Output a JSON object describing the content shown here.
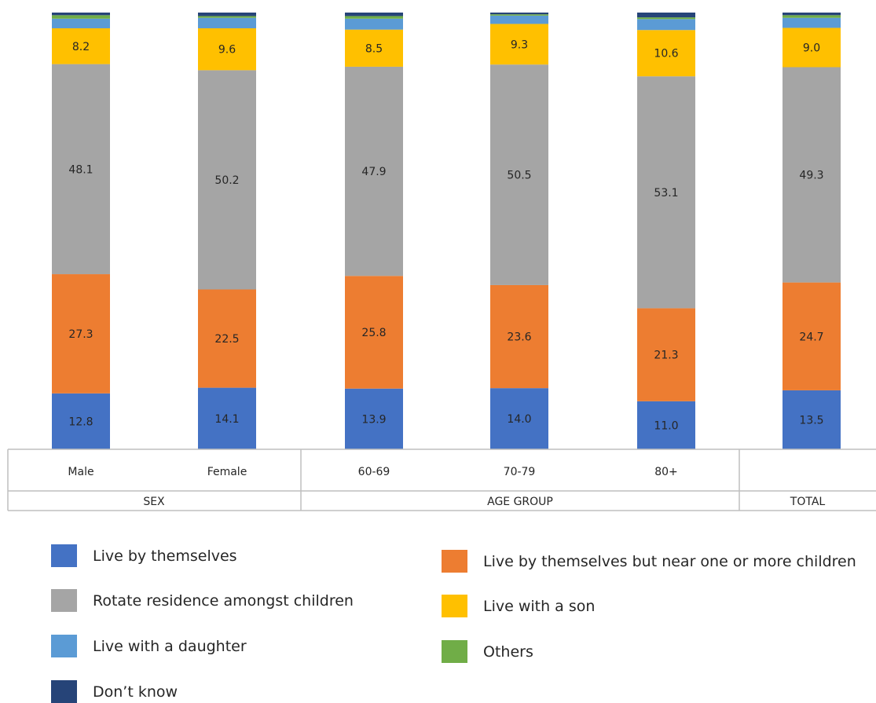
{
  "chart_data": {
    "type": "bar",
    "stacked": true,
    "categories": [
      "Male",
      "Female",
      "60-69",
      "70-79",
      "80+",
      ""
    ],
    "groups": [
      {
        "label": "SEX",
        "categories": [
          "Male",
          "Female"
        ]
      },
      {
        "label": "AGE GROUP",
        "categories": [
          "60-69",
          "70-79",
          "80+"
        ]
      },
      {
        "label": "TOTAL",
        "categories": [
          ""
        ]
      }
    ],
    "series": [
      {
        "name": "Live by themselves",
        "color": "#4472C4",
        "values": [
          12.8,
          14.1,
          13.9,
          14.0,
          11.0,
          13.5
        ]
      },
      {
        "name": "Live by themselves but near one or more children",
        "color": "#ED7D31",
        "values": [
          27.3,
          22.5,
          25.8,
          23.6,
          21.3,
          24.7
        ]
      },
      {
        "name": "Rotate residence amongst children",
        "color": "#A5A5A5",
        "values": [
          48.1,
          50.2,
          47.9,
          50.5,
          53.1,
          49.3
        ]
      },
      {
        "name": "Live with a son",
        "color": "#FFC000",
        "values": [
          8.2,
          9.6,
          8.5,
          9.3,
          10.6,
          9.0
        ]
      },
      {
        "name": "Live with a daughter",
        "color": "#5B9BD5",
        "values": [
          2.2,
          2.4,
          2.5,
          1.9,
          2.5,
          2.3
        ]
      },
      {
        "name": "Others",
        "color": "#70AD47",
        "values": [
          0.8,
          0.4,
          0.6,
          0.3,
          0.4,
          0.6
        ]
      },
      {
        "name": "Don’t know",
        "color": "#264478",
        "values": [
          0.6,
          0.8,
          0.8,
          0.4,
          1.1,
          0.6
        ]
      }
    ],
    "data_labels": [
      "Live by themselves",
      "Live by themselves but near one or more children",
      "Rotate residence amongst children",
      "Live with a son"
    ],
    "ylim": [
      0,
      100
    ],
    "grid": false,
    "legend_position": "bottom",
    "title": "",
    "xlabel": "",
    "ylabel": ""
  }
}
